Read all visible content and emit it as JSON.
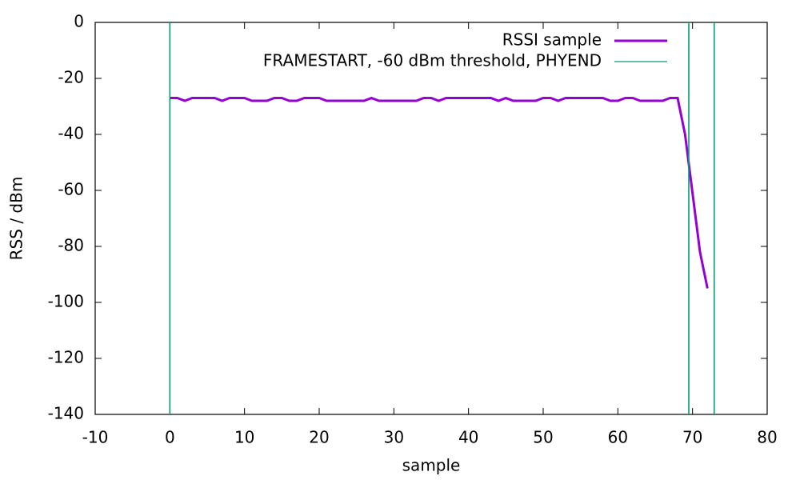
{
  "chart_data": {
    "type": "line",
    "xlabel": "sample",
    "ylabel": "RSS / dBm",
    "xlim": [
      -10,
      80
    ],
    "xticks": [
      -10,
      0,
      10,
      20,
      30,
      40,
      50,
      60,
      70,
      80
    ],
    "ylim": [
      -140,
      0
    ],
    "yticks": [
      -140,
      -120,
      -100,
      -80,
      -60,
      -40,
      -20,
      0
    ],
    "legend": "top-right",
    "series": [
      {
        "name": "RSSI sample",
        "color": "#9400d3",
        "x": [
          0,
          1,
          2,
          3,
          4,
          5,
          6,
          7,
          8,
          9,
          10,
          11,
          12,
          13,
          14,
          15,
          16,
          17,
          18,
          19,
          20,
          21,
          22,
          23,
          24,
          25,
          26,
          27,
          28,
          29,
          30,
          31,
          32,
          33,
          34,
          35,
          36,
          37,
          38,
          39,
          40,
          41,
          42,
          43,
          44,
          45,
          46,
          47,
          48,
          49,
          50,
          51,
          52,
          53,
          54,
          55,
          56,
          57,
          58,
          59,
          60,
          61,
          62,
          63,
          64,
          65,
          66,
          67,
          68,
          69,
          70,
          71,
          72
        ],
        "values": [
          -27,
          -27,
          -28,
          -27,
          -27,
          -27,
          -27,
          -28,
          -27,
          -27,
          -27,
          -28,
          -28,
          -28,
          -27,
          -27,
          -28,
          -28,
          -27,
          -27,
          -27,
          -28,
          -28,
          -28,
          -28,
          -28,
          -28,
          -27,
          -28,
          -28,
          -28,
          -28,
          -28,
          -28,
          -27,
          -27,
          -28,
          -27,
          -27,
          -27,
          -27,
          -27,
          -27,
          -27,
          -28,
          -27,
          -28,
          -28,
          -28,
          -28,
          -27,
          -27,
          -28,
          -27,
          -27,
          -27,
          -27,
          -27,
          -27,
          -28,
          -28,
          -27,
          -27,
          -28,
          -28,
          -28,
          -28,
          -27,
          -27,
          -40,
          -61,
          -82,
          -95
        ]
      }
    ],
    "vlines": {
      "name": "FRAMESTART, -60 dBm threshold, PHYEND",
      "color": "#009e73",
      "x": [
        0,
        69.5,
        72.9
      ]
    }
  }
}
